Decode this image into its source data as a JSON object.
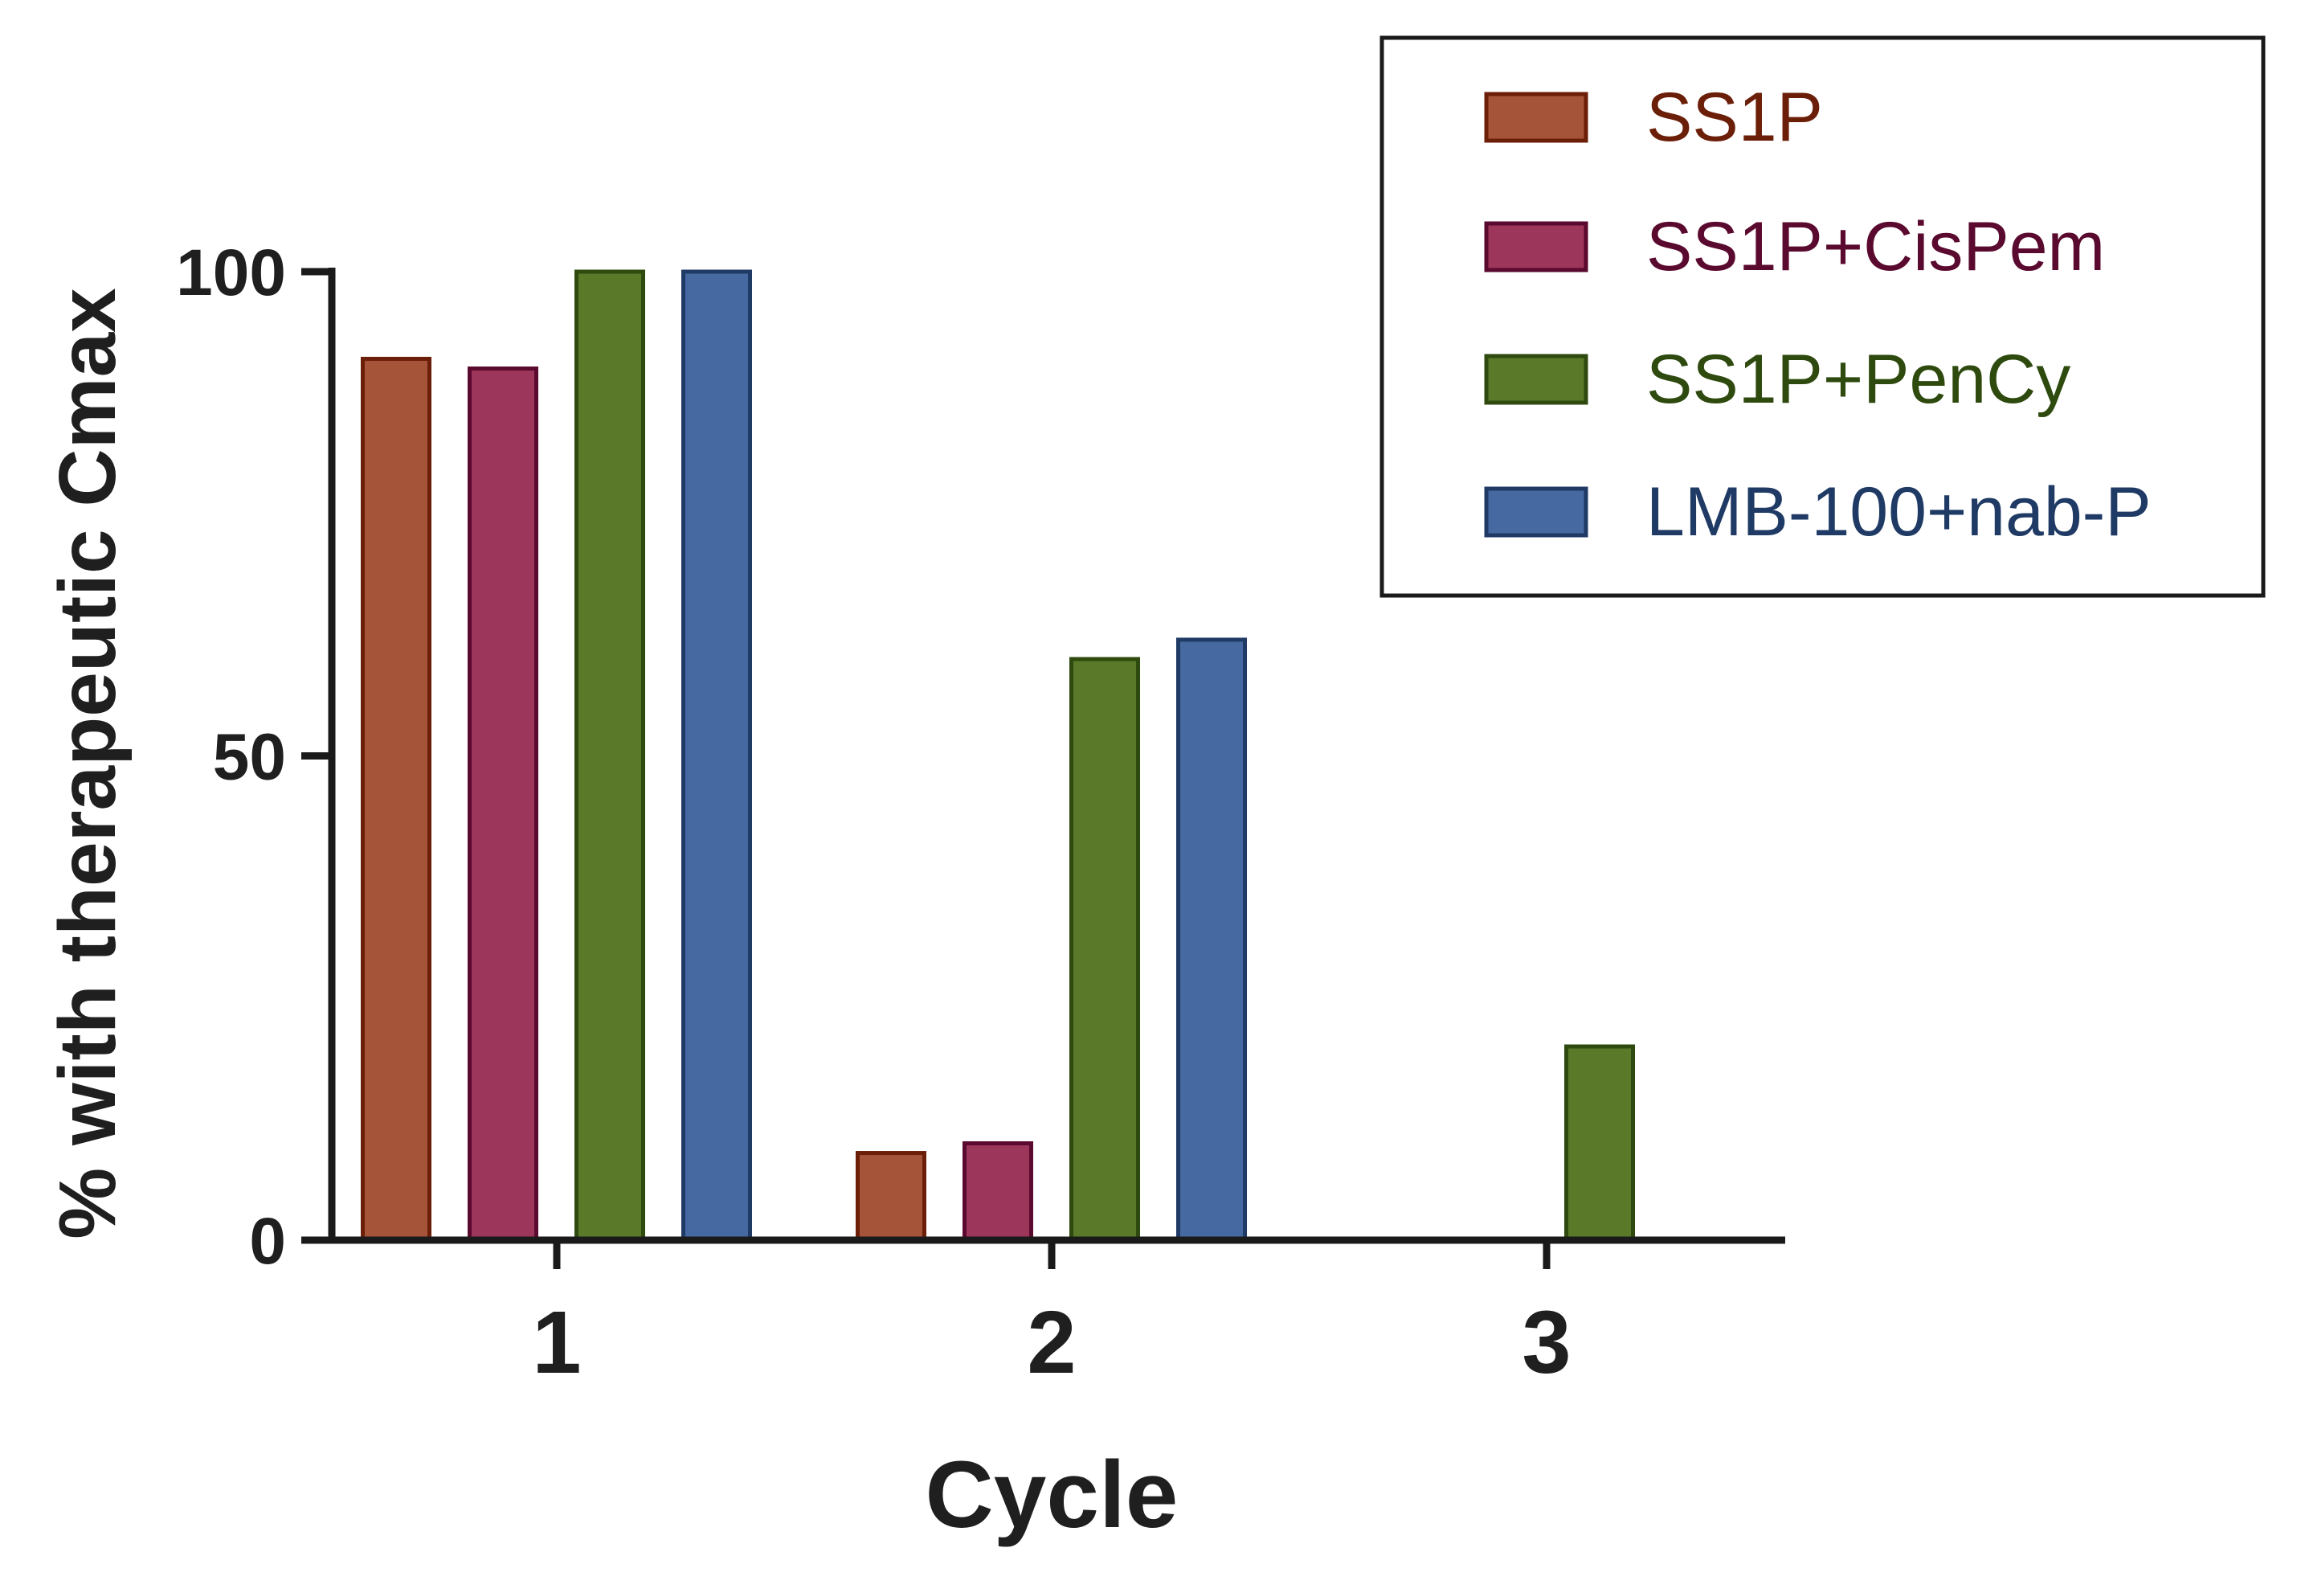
{
  "chart_data": {
    "type": "bar",
    "title": "",
    "xlabel": "Cycle",
    "ylabel": "% with therapeutic Cmax",
    "categories": [
      "1",
      "2",
      "3"
    ],
    "y_ticks": [
      0,
      50,
      100
    ],
    "ylim": [
      0,
      100
    ],
    "grid": false,
    "legend_position": "top-right",
    "series": [
      {
        "name": "SS1P",
        "values": [
          91,
          9,
          0
        ],
        "fill": "#A5543A",
        "stroke": "#6B1E08"
      },
      {
        "name": "SS1P+CisPem",
        "values": [
          90,
          10,
          0
        ],
        "fill": "#9C365A",
        "stroke": "#5A0A2E"
      },
      {
        "name": "SS1P+PenCy",
        "values": [
          100,
          60,
          20
        ],
        "fill": "#5A7A2A",
        "stroke": "#2E4A0E"
      },
      {
        "name": "LMB-100+nab-P",
        "values": [
          100,
          62,
          0
        ],
        "fill": "#4569A0",
        "stroke": "#1F3A64"
      }
    ]
  }
}
